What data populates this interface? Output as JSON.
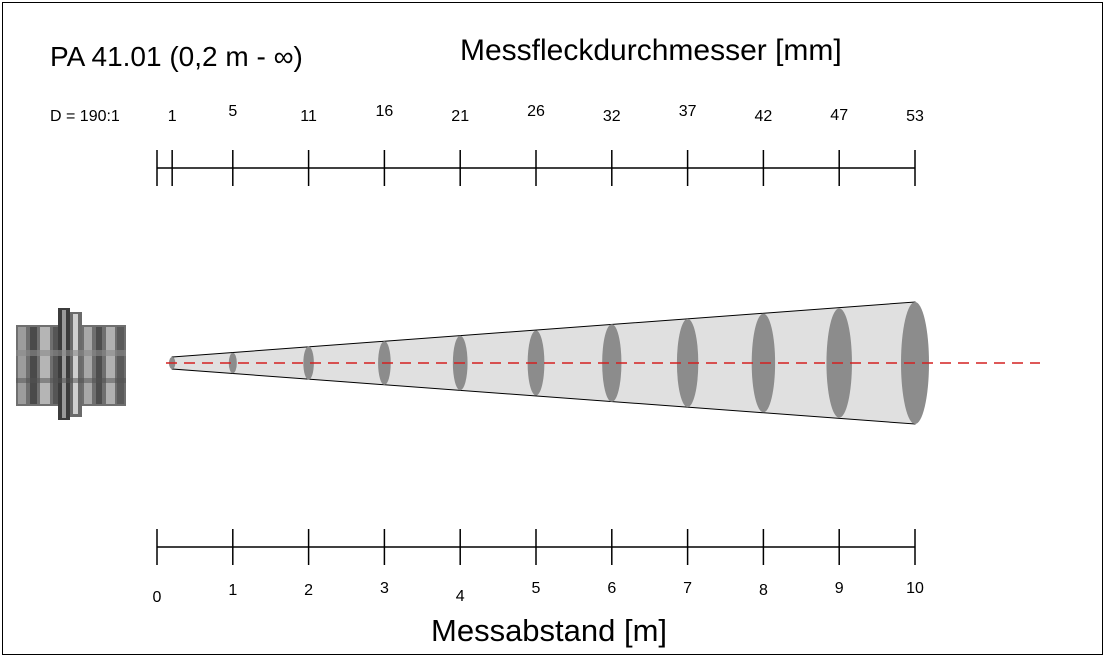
{
  "title": "PA 41.01 (0,2 m - ∞)",
  "spot_axis_label": "Messfleckdurchmesser [mm]",
  "distance_axis_label": "Messabstand [m]",
  "ratio_label": "D = 190:1",
  "colors": {
    "beam_fill": "#e0e0e0",
    "spot_fill": "#8c8c8c",
    "optical_axis": "#d42020",
    "axis_line": "#000000"
  },
  "chart_data": {
    "type": "diagram",
    "spot_ticks": [
      {
        "distance_m": 0.2,
        "label": "1"
      },
      {
        "distance_m": 1,
        "label": "5"
      },
      {
        "distance_m": 2,
        "label": "11"
      },
      {
        "distance_m": 3,
        "label": "16"
      },
      {
        "distance_m": 4,
        "label": "21"
      },
      {
        "distance_m": 5,
        "label": "26"
      },
      {
        "distance_m": 6,
        "label": "32"
      },
      {
        "distance_m": 7,
        "label": "37"
      },
      {
        "distance_m": 8,
        "label": "42"
      },
      {
        "distance_m": 9,
        "label": "47"
      },
      {
        "distance_m": 10,
        "label": "53"
      }
    ],
    "distance_ticks": [
      "0",
      "1",
      "2",
      "3",
      "4",
      "5",
      "6",
      "7",
      "8",
      "9",
      "10"
    ],
    "distance_range": [
      0,
      10
    ]
  }
}
